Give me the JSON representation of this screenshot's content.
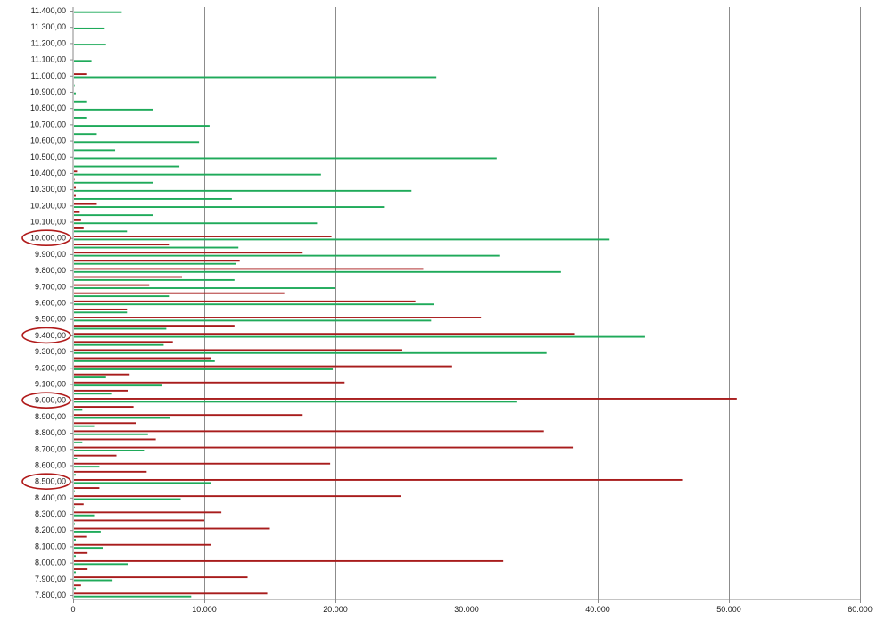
{
  "chart_data": {
    "type": "bar",
    "orientation": "horizontal",
    "title": "",
    "xlabel": "",
    "ylabel": "",
    "xlim": [
      0,
      60000
    ],
    "x_ticks": [
      0,
      10000,
      20000,
      30000,
      40000,
      50000,
      60000
    ],
    "x_tick_labels": [
      "0",
      "10.000",
      "20.000",
      "30.000",
      "40.000",
      "50.000",
      "60.000"
    ],
    "y_tick_labels": [
      "7.800,00",
      "7.900,00",
      "8.000,00",
      "8.100,00",
      "8.200,00",
      "8.300,00",
      "8.400,00",
      "8.500,00",
      "8.600,00",
      "8.700,00",
      "8.800,00",
      "8.900,00",
      "9.000,00",
      "9.100,00",
      "9.200,00",
      "9.300,00",
      "9.400,00",
      "9.500,00",
      "9.600,00",
      "9.700,00",
      "9.800,00",
      "9.900,00",
      "10.000,00",
      "10.100,00",
      "10.200,00",
      "10.300,00",
      "10.400,00",
      "10.500,00",
      "10.600,00",
      "10.700,00",
      "10.800,00",
      "10.900,00",
      "11.000,00",
      "11.100,00",
      "11.200,00",
      "11.300,00",
      "11.400,00"
    ],
    "circled_labels": [
      "8.500,00",
      "9.000,00",
      "9.400,00",
      "10.000,00"
    ],
    "grid": "vertical",
    "legend": "none",
    "categories": [
      7800,
      7850,
      7900,
      7950,
      8000,
      8050,
      8100,
      8150,
      8200,
      8250,
      8300,
      8350,
      8400,
      8450,
      8500,
      8550,
      8600,
      8650,
      8700,
      8750,
      8800,
      8850,
      8900,
      8950,
      9000,
      9050,
      9100,
      9150,
      9200,
      9250,
      9300,
      9350,
      9400,
      9450,
      9500,
      9550,
      9600,
      9650,
      9700,
      9750,
      9800,
      9850,
      9900,
      9950,
      10000,
      10050,
      10100,
      10150,
      10200,
      10250,
      10300,
      10350,
      10400,
      10450,
      10500,
      10550,
      10600,
      10650,
      10700,
      10750,
      10800,
      10850,
      10900,
      10950,
      11000,
      11050,
      11100,
      11150,
      11200,
      11250,
      11300,
      11350,
      11400
    ],
    "series": [
      {
        "color": "#a81c1c",
        "values": [
          14800,
          600,
          13300,
          1100,
          32800,
          1100,
          10500,
          1000,
          15000,
          10000,
          11300,
          800,
          25000,
          2000,
          46500,
          5600,
          19600,
          3300,
          38100,
          6300,
          35900,
          4800,
          17500,
          4600,
          50600,
          4200,
          20700,
          4300,
          28900,
          10500,
          25100,
          7600,
          38200,
          12300,
          31100,
          4100,
          26100,
          16100,
          5800,
          8300,
          26700,
          12700,
          17500,
          7300,
          19700,
          800,
          600,
          500,
          1800,
          200,
          200,
          100,
          300,
          0,
          0,
          0,
          0,
          0,
          0,
          0,
          0,
          0,
          0,
          0,
          1000,
          0,
          0,
          0,
          0,
          0,
          0,
          0,
          0
        ]
      },
      {
        "color": "#1faa5a",
        "values": [
          9000,
          200,
          3000,
          200,
          4200,
          200,
          2300,
          200,
          2100,
          100,
          1600,
          100,
          8200,
          100,
          10500,
          200,
          2000,
          300,
          5400,
          700,
          5700,
          1600,
          7400,
          700,
          33800,
          2900,
          6800,
          2500,
          19800,
          10800,
          36100,
          6900,
          43600,
          7100,
          27300,
          4100,
          27500,
          7300,
          20000,
          12300,
          37200,
          12400,
          32500,
          12600,
          40900,
          4100,
          18600,
          6100,
          23700,
          12100,
          25800,
          6100,
          18900,
          8100,
          32300,
          3200,
          9600,
          1800,
          10400,
          1000,
          6100,
          1000,
          200,
          100,
          27700,
          0,
          1400,
          0,
          2500,
          0,
          2400,
          0,
          3700
        ]
      }
    ]
  }
}
